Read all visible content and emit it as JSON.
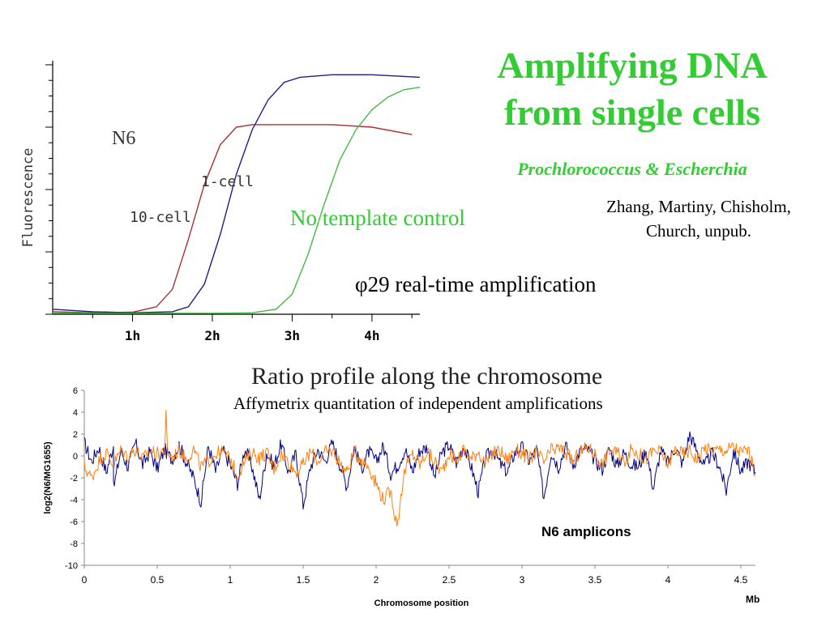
{
  "slide": {
    "title_line1": "Amplifying DNA",
    "title_line2": "from single cells",
    "subtitle": "Prochlorococcus & Escherchia",
    "authors_line1": "Zhang, Martiny, Chisholm,",
    "authors_line2": "Church, unpub.",
    "phi_caption": "φ29 real-time amplification",
    "no_template_label": "No template control",
    "ratio_title": "Ratio profile along the chromosome",
    "affy_caption": "Affymetrix quantitation of independent amplifications"
  },
  "colors": {
    "title_green": "#33cc33",
    "red_curve": "#aa3030",
    "blue_curve": "#202080",
    "green_curve": "#44bb44",
    "navy_series": "#000080",
    "orange_series": "#ff7f0e"
  },
  "chart_data": [
    {
      "type": "line",
      "title": "",
      "ylabel": "Fluorescence",
      "xlabel": "",
      "x_ticks": [
        "1h",
        "2h",
        "3h",
        "4h"
      ],
      "x_range": [
        0,
        4.6
      ],
      "annotations": [
        "N6",
        "1-cell",
        "10-cell"
      ],
      "series": [
        {
          "name": "10-cell",
          "color": "#aa3030",
          "x": [
            0,
            0.5,
            1.0,
            1.3,
            1.5,
            1.7,
            1.9,
            2.1,
            2.3,
            2.5,
            3.0,
            3.5,
            4.0,
            4.5
          ],
          "y": [
            0.05,
            0.03,
            0.04,
            0.15,
            0.5,
            1.5,
            2.6,
            3.4,
            3.75,
            3.8,
            3.8,
            3.8,
            3.75,
            3.6
          ]
        },
        {
          "name": "1-cell",
          "color": "#202080",
          "x": [
            0,
            0.5,
            1.0,
            1.5,
            1.7,
            1.9,
            2.1,
            2.3,
            2.5,
            2.7,
            2.9,
            3.1,
            3.5,
            4.0,
            4.6
          ],
          "y": [
            0.1,
            0.05,
            0.03,
            0.05,
            0.15,
            0.6,
            1.6,
            2.8,
            3.7,
            4.3,
            4.65,
            4.75,
            4.8,
            4.8,
            4.75
          ]
        },
        {
          "name": "No template control",
          "color": "#44bb44",
          "x": [
            0,
            1.0,
            2.0,
            2.5,
            2.8,
            3.0,
            3.2,
            3.4,
            3.6,
            3.8,
            4.0,
            4.2,
            4.4,
            4.6
          ],
          "y": [
            0.02,
            0.02,
            0.02,
            0.03,
            0.1,
            0.4,
            1.2,
            2.2,
            3.1,
            3.7,
            4.1,
            4.35,
            4.5,
            4.55
          ]
        }
      ]
    },
    {
      "type": "line",
      "title": "",
      "xlabel": "Chromosome position",
      "x_unit_label": "Mb",
      "ylabel": "log2(N6/MG1655)",
      "xlim": [
        0,
        4.6
      ],
      "ylim": [
        -10,
        6
      ],
      "x_ticks": [
        0,
        0.5,
        1,
        1.5,
        2,
        2.5,
        3,
        3.5,
        4,
        4.5
      ],
      "y_ticks": [
        6,
        4,
        2,
        0,
        -2,
        -4,
        -6,
        -8,
        -10
      ],
      "annotation": "N6 amplicons",
      "series": [
        {
          "color": "#000080",
          "x": [
            0,
            0.05,
            0.1,
            0.15,
            0.2,
            0.2,
            0.25,
            0.3,
            0.35,
            0.4,
            0.45,
            0.5,
            0.55,
            0.6,
            0.65,
            0.7,
            0.75,
            0.8,
            0.85,
            0.9,
            0.95,
            1.0,
            1.05,
            1.1,
            1.15,
            1.2,
            1.25,
            1.3,
            1.35,
            1.4,
            1.45,
            1.5,
            1.55,
            1.6,
            1.65,
            1.7,
            1.75,
            1.8,
            1.85,
            1.9,
            1.95,
            2.0,
            2.05,
            2.1,
            2.15,
            2.2,
            2.25,
            2.3,
            2.35,
            2.4,
            2.45,
            2.5,
            2.55,
            2.6,
            2.65,
            2.7,
            2.75,
            2.8,
            2.85,
            2.9,
            2.95,
            3.0,
            3.05,
            3.1,
            3.15,
            3.2,
            3.25,
            3.3,
            3.35,
            3.4,
            3.45,
            3.5,
            3.55,
            3.6,
            3.65,
            3.7,
            3.75,
            3.8,
            3.85,
            3.9,
            3.95,
            4.0,
            4.05,
            4.1,
            4.15,
            4.2,
            4.25,
            4.3,
            4.35,
            4.4,
            4.45,
            4.5,
            4.55,
            4.6
          ],
          "y": [
            1.2,
            -0.5,
            0.8,
            -1.5,
            1.0,
            -3.0,
            0.5,
            -1.0,
            1.2,
            -0.8,
            0.4,
            -1.2,
            0.6,
            -0.3,
            1.0,
            -0.6,
            -2.0,
            -4.2,
            0.9,
            -1.4,
            0.5,
            -0.8,
            -2.5,
            0.7,
            -1.0,
            -4.0,
            0.3,
            -0.9,
            1.1,
            -1.5,
            0.2,
            -4.5,
            -1.0,
            0.6,
            -0.5,
            1.2,
            -0.7,
            -2.8,
            0.8,
            -1.2,
            0.4,
            -0.5,
            0.9,
            -1.6,
            -0.8,
            0.6,
            -1.4,
            0.5,
            0.8,
            -2.0,
            0.3,
            1.0,
            -0.6,
            0.9,
            -0.9,
            -3.3,
            -0.2,
            0.6,
            -0.7,
            -1.5,
            0.3,
            0.8,
            -0.5,
            0.6,
            -3.8,
            0.4,
            -1.0,
            0.9,
            -0.8,
            0.5,
            0.6,
            -0.4,
            -1.2,
            0.7,
            -0.9,
            0.3,
            -0.8,
            -1.0,
            0.6,
            -3.0,
            0.5,
            -0.6,
            0.8,
            -0.7,
            2.0,
            0.4,
            -1.0,
            0.3,
            -0.8,
            -3.2,
            0.5,
            -1.4,
            -0.5,
            -1.5
          ]
        },
        {
          "color": "#ff7f0e",
          "x": [
            0,
            0.05,
            0.1,
            0.15,
            0.2,
            0.25,
            0.3,
            0.35,
            0.4,
            0.45,
            0.5,
            0.55,
            0.56,
            0.57,
            0.6,
            0.65,
            0.7,
            0.75,
            0.8,
            0.85,
            0.9,
            0.95,
            1.0,
            1.05,
            1.1,
            1.15,
            1.2,
            1.25,
            1.3,
            1.35,
            1.4,
            1.45,
            1.5,
            1.55,
            1.6,
            1.65,
            1.7,
            1.75,
            1.8,
            1.85,
            1.9,
            1.95,
            2.0,
            2.05,
            2.1,
            2.13,
            2.15,
            2.17,
            2.2,
            2.25,
            2.3,
            2.35,
            2.4,
            2.45,
            2.5,
            2.55,
            2.6,
            2.65,
            2.7,
            2.75,
            2.8,
            2.85,
            2.9,
            2.95,
            3.0,
            3.05,
            3.1,
            3.15,
            3.2,
            3.25,
            3.3,
            3.35,
            3.4,
            3.45,
            3.5,
            3.55,
            3.6,
            3.65,
            3.7,
            3.75,
            3.8,
            3.85,
            3.9,
            3.95,
            4.0,
            4.05,
            4.1,
            4.15,
            4.2,
            4.25,
            4.3,
            4.35,
            4.4,
            4.45,
            4.5,
            4.55,
            4.6
          ],
          "y": [
            -1.0,
            -2.0,
            -0.5,
            0.3,
            -0.8,
            0.5,
            0.0,
            0.6,
            -0.3,
            0.5,
            0.2,
            0.6,
            3.6,
            0.4,
            -0.2,
            0.5,
            -0.3,
            0.6,
            -1.0,
            -0.5,
            0.2,
            0.4,
            -0.3,
            -1.8,
            -0.5,
            0.4,
            -0.2,
            0.3,
            -1.2,
            0.2,
            -0.5,
            -1.5,
            -0.8,
            0.4,
            -0.5,
            0.3,
            0.5,
            -0.6,
            -1.5,
            0.4,
            -0.3,
            -1.0,
            -2.5,
            -4.0,
            -3.2,
            -5.5,
            -6.2,
            -3.5,
            -1.2,
            0.2,
            -0.8,
            0.4,
            -0.5,
            -1.5,
            0.3,
            -0.5,
            0.6,
            -0.3,
            0.5,
            -0.8,
            0.3,
            0.5,
            -0.4,
            0.6,
            0.2,
            -0.3,
            0.4,
            -0.6,
            0.5,
            0.7,
            0.3,
            -0.5,
            0.4,
            0.8,
            0.2,
            -0.8,
            0.5,
            0.3,
            -0.5,
            0.6,
            0.2,
            -0.4,
            0.5,
            0.3,
            -0.8,
            0.6,
            0.2,
            0.5,
            -0.3,
            0.8,
            0.4,
            0.6,
            0.5,
            0.9,
            0.3,
            0.6,
            -1.8
          ]
        }
      ]
    }
  ]
}
